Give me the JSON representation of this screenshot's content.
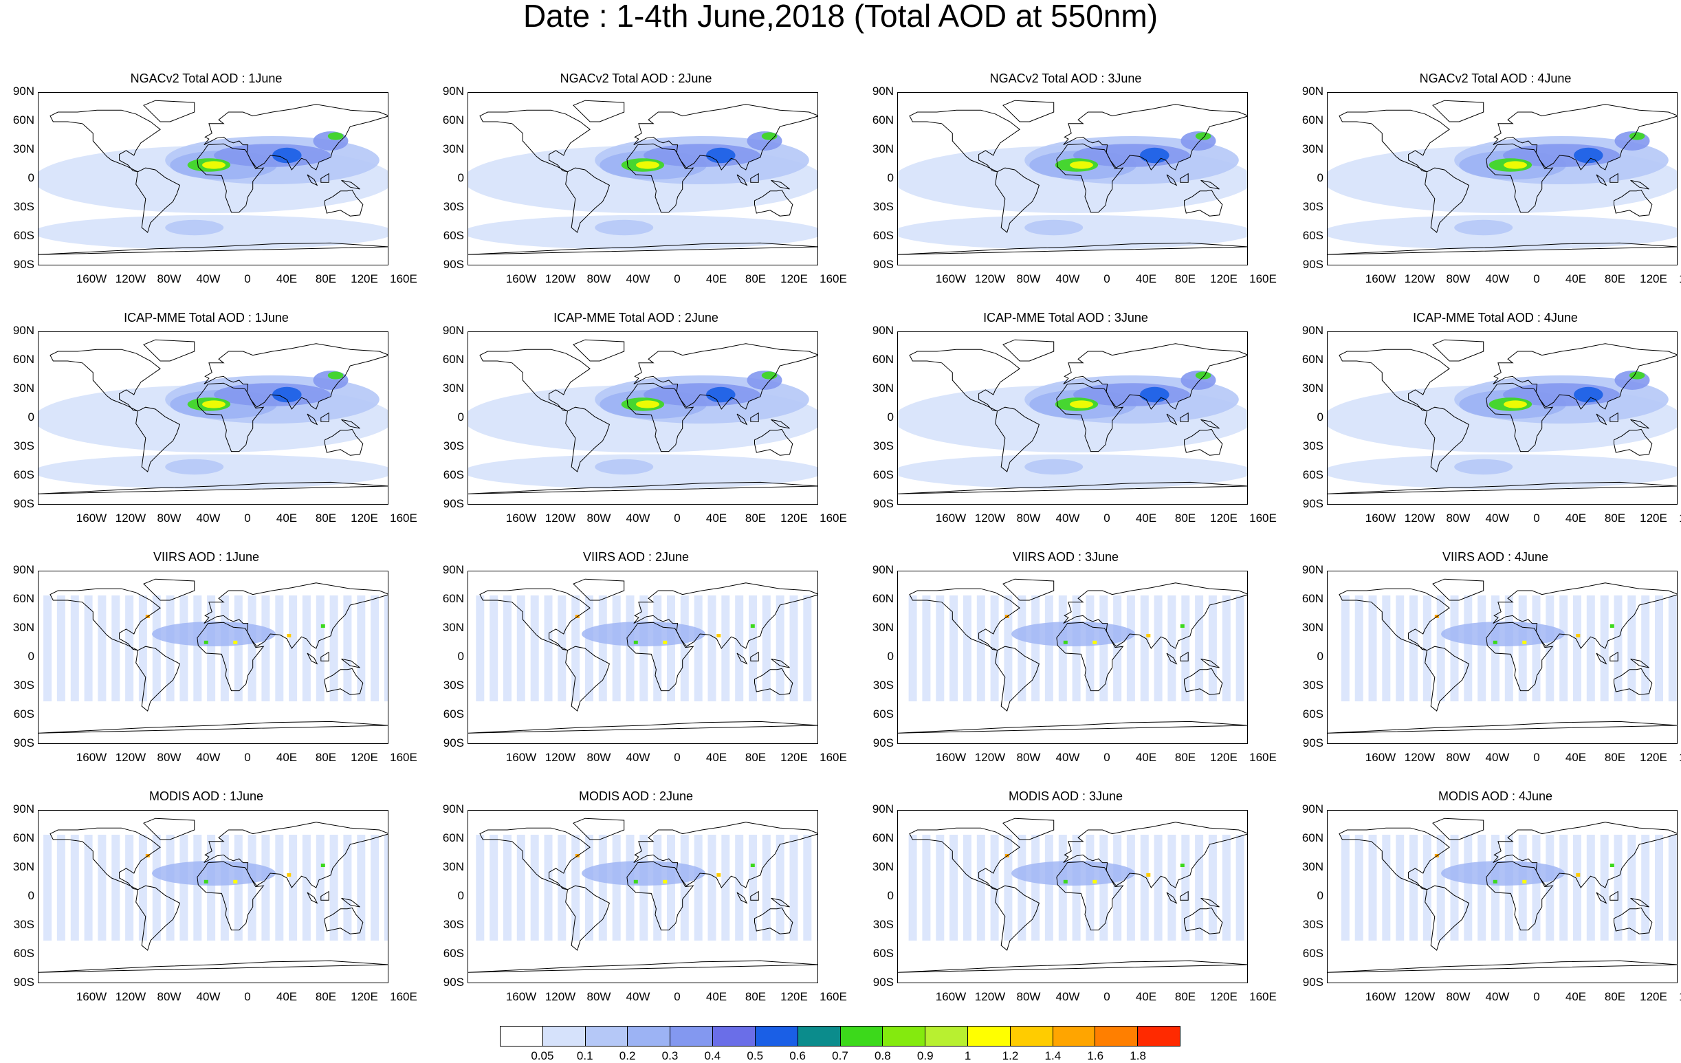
{
  "title": "Date : 1-4th June,2018 (Total AOD at 550nm)",
  "panels": [
    {
      "title": "NGACv2 Total AOD : 1June",
      "type": "model"
    },
    {
      "title": "NGACv2 Total AOD : 2June",
      "type": "model"
    },
    {
      "title": "NGACv2 Total AOD : 3June",
      "type": "model"
    },
    {
      "title": "NGACv2 Total AOD : 4June",
      "type": "model"
    },
    {
      "title": "ICAP-MME Total AOD : 1June",
      "type": "model"
    },
    {
      "title": "ICAP-MME Total AOD : 2June",
      "type": "model"
    },
    {
      "title": "ICAP-MME Total AOD : 3June",
      "type": "model"
    },
    {
      "title": "ICAP-MME Total AOD : 4June",
      "type": "model"
    },
    {
      "title": "VIIRS AOD : 1June",
      "type": "sat"
    },
    {
      "title": "VIIRS AOD : 2June",
      "type": "sat"
    },
    {
      "title": "VIIRS AOD : 3June",
      "type": "sat"
    },
    {
      "title": "VIIRS AOD : 4June",
      "type": "sat"
    },
    {
      "title": "MODIS AOD : 1June",
      "type": "sat"
    },
    {
      "title": "MODIS AOD : 2June",
      "type": "sat"
    },
    {
      "title": "MODIS AOD : 3June",
      "type": "sat"
    },
    {
      "title": "MODIS AOD : 4June",
      "type": "sat"
    }
  ],
  "lat_labels": [
    "90N",
    "60N",
    "30N",
    "0",
    "30S",
    "60S",
    "90S"
  ],
  "lon_labels": [
    "160W",
    "120W",
    "80W",
    "40W",
    "0",
    "40E",
    "80E",
    "120E",
    "160E"
  ],
  "colorbar": {
    "labels": [
      "0.05",
      "0.1",
      "0.2",
      "0.3",
      "0.4",
      "0.5",
      "0.6",
      "0.7",
      "0.8",
      "0.9",
      "1",
      "1.2",
      "1.4",
      "1.6",
      "1.8"
    ],
    "colors": [
      "#ffffff",
      "#d6e2fb",
      "#b5c8f7",
      "#9cb3f4",
      "#8398f0",
      "#6a6ee8",
      "#1a5fe6",
      "#0b8c8c",
      "#3cd91b",
      "#84ea0e",
      "#b8f030",
      "#ffff00",
      "#ffcc00",
      "#ffa500",
      "#ff7f00",
      "#ff2a00"
    ]
  }
}
